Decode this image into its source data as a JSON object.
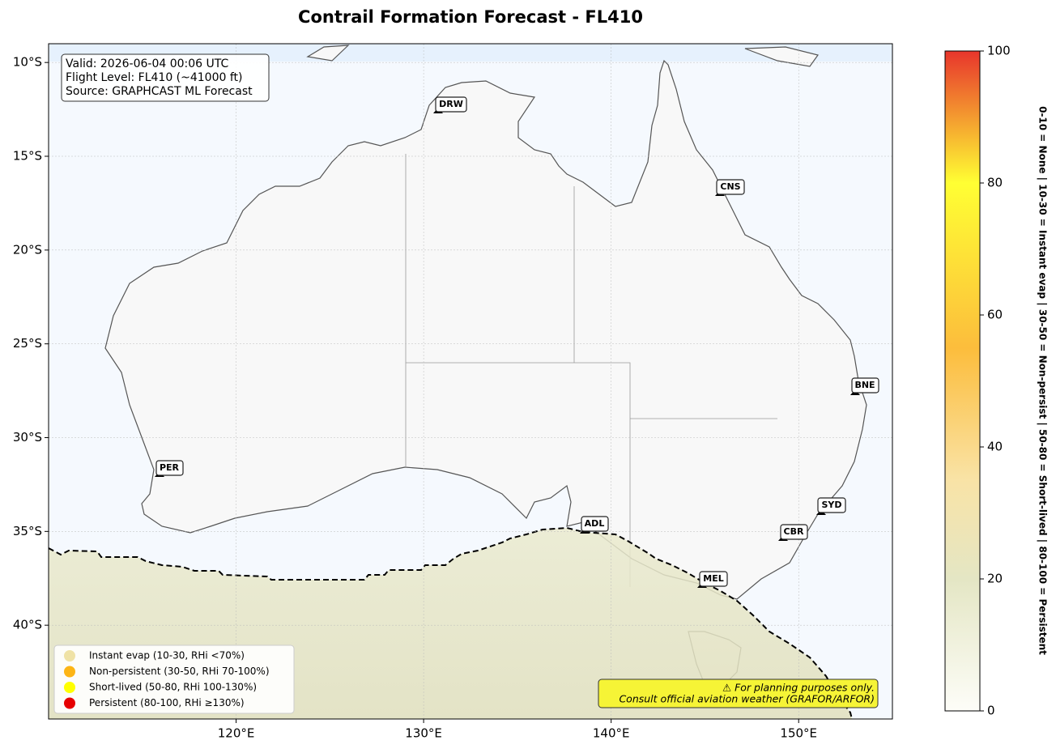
{
  "title": "Contrail Formation Forecast - FL410",
  "info": [
    "Valid: 2026-06-04 00:06 UTC",
    "Flight Level: FL410 (~41000 ft)",
    "Source: GRAPHCAST ML Forecast"
  ],
  "map": {
    "xlim": [
      110,
      155
    ],
    "ylim": [
      -45,
      -9
    ],
    "grid": true,
    "xticks": [
      {
        "value": 120,
        "label": "120°E"
      },
      {
        "value": 130,
        "label": "130°E"
      },
      {
        "value": 140,
        "label": "140°E"
      },
      {
        "value": 150,
        "label": "150°E"
      }
    ],
    "yticks": [
      {
        "value": -10,
        "label": "10°S"
      },
      {
        "value": -15,
        "label": "15°S"
      },
      {
        "value": -20,
        "label": "20°S"
      },
      {
        "value": -25,
        "label": "25°S"
      },
      {
        "value": -30,
        "label": "30°S"
      },
      {
        "value": -35,
        "label": "35°S"
      },
      {
        "value": -40,
        "label": "40°S"
      }
    ]
  },
  "airports": [
    "DRW",
    "CNS",
    "BNE",
    "PER",
    "ADL",
    "SYD",
    "CBR",
    "MEL"
  ],
  "colorbar": {
    "lim": [
      0,
      100
    ],
    "ticks": [
      0,
      20,
      40,
      60,
      80,
      100
    ],
    "label": "0-10 = None  |  10-30 = Instant evap  |  30-50 = Non-persist  |  50-80 = Short-lived  |  80-100 = Persistent",
    "stops": [
      {
        "value": 0,
        "color": "#fdfdf8"
      },
      {
        "value": 20,
        "color": "#e4e6c4"
      },
      {
        "value": 35,
        "color": "#f9e3a6"
      },
      {
        "value": 55,
        "color": "#fcbd3c"
      },
      {
        "value": 80,
        "color": "#ffff33"
      },
      {
        "value": 100,
        "color": "#e8352c"
      }
    ]
  },
  "legend": [
    {
      "label": "Instant evap (10-30, RHi <70%)",
      "color": "#efe2a6"
    },
    {
      "label": "Non-persistent (30-50, RHi 70-100%)",
      "color": "#fdb515"
    },
    {
      "label": "Short-lived (50-80, RHi 100-130%)",
      "color": "#ffff00"
    },
    {
      "label": "Persistent (80-100, RHi ≥130%)",
      "color": "#e60000"
    }
  ],
  "disclaimer": [
    "⚠ For planning purposes only.",
    "Consult official aviation weather (GRAFOR/ARFOR)"
  ]
}
